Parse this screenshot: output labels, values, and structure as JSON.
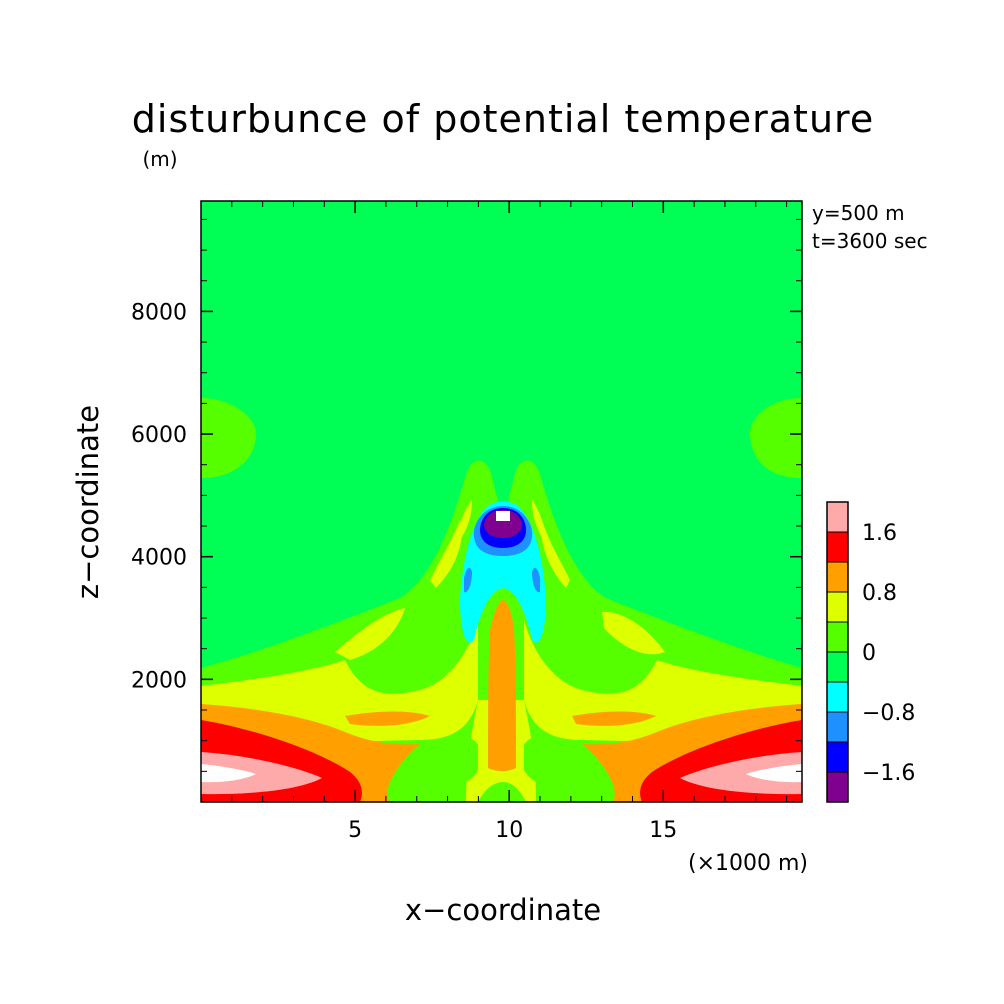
{
  "chart_data": {
    "type": "heatmap",
    "title": "disturbunce of potential temperature",
    "y_unit_label": "(m)",
    "xlabel": "x−coordinate",
    "ylabel": "z−coordinate",
    "x_unit_label": "(×1000 m)",
    "annotations": [
      "y=500 m",
      "t=3600 sec"
    ],
    "xlim": [
      0,
      19.5
    ],
    "ylim": [
      0,
      9800
    ],
    "x_ticks": [
      5,
      10,
      15
    ],
    "x_tick_labels": [
      "5",
      "10",
      "15"
    ],
    "y_ticks": [
      2000,
      4000,
      6000,
      8000
    ],
    "y_tick_labels": [
      "2000",
      "4000",
      "6000",
      "8000"
    ],
    "levels": [
      -2.0,
      -1.6,
      -1.2,
      -0.8,
      -0.4,
      0.0,
      0.4,
      0.8,
      1.2,
      1.6,
      2.0
    ],
    "colorbar": {
      "colors": [
        "#800090",
        "#0000ff",
        "#1e90ff",
        "#00ffff",
        "#00ff55",
        "#55ff00",
        "#ddff00",
        "#ffa000",
        "#ff0000",
        "#ffaaaa",
        "#ffffff"
      ],
      "tick_values": [
        -1.6,
        -0.8,
        0,
        0.8,
        1.6
      ],
      "tick_labels": [
        "−1.6",
        "−0.8",
        "0",
        "0.8",
        "1.6"
      ]
    },
    "grid": false
  }
}
